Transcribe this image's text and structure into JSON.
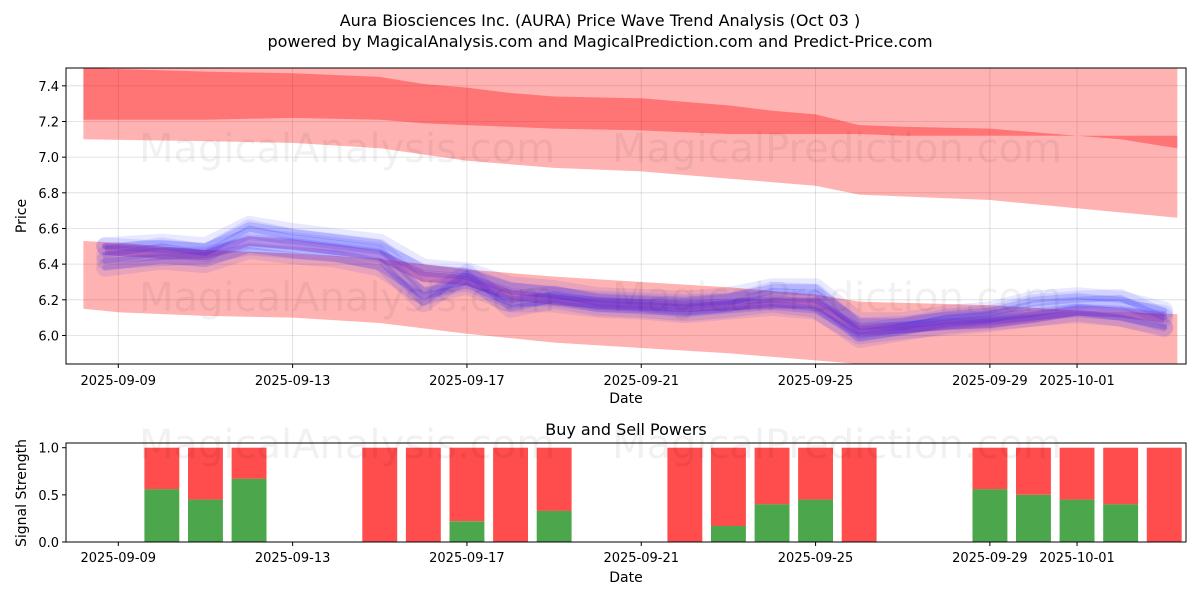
{
  "title_line1": "Aura Biosciences Inc. (AURA) Price Wave Trend Analysis (Oct 03 )",
  "title_line2": "powered by MagicalAnalysis.com and MagicalPrediction.com and Predict-Price.com",
  "watermarks": {
    "left": "MagicalAnalysis.com",
    "right": "MagicalPrediction.com"
  },
  "colors": {
    "band": "#ff0000",
    "wave": "#0000ff",
    "buy": "#008000",
    "sell": "#ff0000"
  },
  "chart_data": [
    {
      "type": "area",
      "title": "Aura Biosciences Inc. (AURA) Price Wave Trend Analysis (Oct 03 )",
      "xlabel": "Date",
      "ylabel": "Price",
      "xlim_days": [
        -1.2,
        24.5
      ],
      "ylim": [
        5.84,
        7.5
      ],
      "x_ticks": [
        {
          "day": 0,
          "label": "2025-09-09"
        },
        {
          "day": 4,
          "label": "2025-09-13"
        },
        {
          "day": 8,
          "label": "2025-09-17"
        },
        {
          "day": 12,
          "label": "2025-09-21"
        },
        {
          "day": 16,
          "label": "2025-09-25"
        },
        {
          "day": 20,
          "label": "2025-09-29"
        },
        {
          "day": 22,
          "label": "2025-10-01"
        }
      ],
      "y_ticks": [
        "6.0",
        "6.2",
        "6.4",
        "6.6",
        "6.8",
        "7.0",
        "7.2",
        "7.4"
      ],
      "y_tick_values": [
        6.0,
        6.2,
        6.4,
        6.6,
        6.8,
        7.0,
        7.2,
        7.4
      ],
      "grid": true,
      "upper_band_outer": {
        "x": [
          -0.8,
          2,
          4,
          6,
          8,
          10,
          12,
          14,
          16,
          17,
          20,
          24.3
        ],
        "top": [
          7.5,
          7.5,
          7.5,
          7.5,
          7.5,
          7.5,
          7.5,
          7.5,
          7.5,
          7.5,
          7.5,
          7.5
        ],
        "bottom": [
          7.1,
          7.09,
          7.08,
          7.05,
          6.98,
          6.94,
          6.92,
          6.88,
          6.84,
          6.79,
          6.76,
          6.66
        ]
      },
      "upper_band_inner": {
        "x": [
          -0.8,
          2,
          4,
          6,
          7,
          8,
          9,
          10,
          12,
          13,
          14,
          15,
          16,
          17,
          18,
          20,
          22,
          23,
          24.3
        ],
        "top": [
          7.5,
          7.48,
          7.47,
          7.45,
          7.41,
          7.39,
          7.36,
          7.34,
          7.33,
          7.31,
          7.29,
          7.26,
          7.24,
          7.18,
          7.17,
          7.16,
          7.12,
          7.1,
          7.05
        ],
        "bottom": [
          7.21,
          7.21,
          7.22,
          7.21,
          7.19,
          7.18,
          7.17,
          7.16,
          7.15,
          7.14,
          7.13,
          7.13,
          7.13,
          7.13,
          7.12,
          7.12,
          7.12,
          7.12,
          7.12
        ]
      },
      "lower_band": {
        "x": [
          -0.8,
          0,
          2,
          4,
          6,
          8,
          10,
          12,
          14,
          16,
          17,
          20,
          22,
          24.3
        ],
        "top": [
          6.53,
          6.52,
          6.48,
          6.46,
          6.43,
          6.37,
          6.33,
          6.3,
          6.27,
          6.23,
          6.19,
          6.17,
          6.14,
          6.12
        ],
        "bottom": [
          6.15,
          6.13,
          6.11,
          6.1,
          6.07,
          6.01,
          5.96,
          5.93,
          5.9,
          5.86,
          5.82,
          5.84,
          5.84,
          5.84
        ]
      },
      "wave_series": [
        {
          "name": "wave-1",
          "x": [
            -0.3,
            1,
            2,
            3,
            4,
            5,
            6,
            7,
            8,
            9,
            10,
            11,
            12,
            13,
            14,
            15,
            16,
            17,
            18,
            19,
            20,
            21,
            22,
            23,
            24
          ],
          "y": [
            6.5,
            6.48,
            6.47,
            6.55,
            6.53,
            6.5,
            6.47,
            6.35,
            6.33,
            6.25,
            6.22,
            6.2,
            6.19,
            6.18,
            6.19,
            6.2,
            6.2,
            6.05,
            6.06,
            6.08,
            6.09,
            6.12,
            6.16,
            6.15,
            6.12
          ]
        },
        {
          "name": "wave-2",
          "x": [
            -0.3,
            1,
            2,
            3,
            4,
            5,
            6,
            7,
            8,
            9,
            10,
            11,
            12,
            13,
            14,
            15,
            16,
            17,
            18,
            19,
            20,
            21,
            22,
            23,
            24
          ],
          "y": [
            6.45,
            6.5,
            6.46,
            6.6,
            6.55,
            6.52,
            6.49,
            6.25,
            6.3,
            6.2,
            6.23,
            6.18,
            6.17,
            6.16,
            6.18,
            6.25,
            6.24,
            6.02,
            6.05,
            6.1,
            6.12,
            6.18,
            6.2,
            6.21,
            6.1
          ]
        },
        {
          "name": "wave-3",
          "x": [
            -0.3,
            1,
            2,
            3,
            4,
            5,
            6,
            7,
            8,
            9,
            10,
            11,
            12,
            13,
            14,
            15,
            16,
            17,
            18,
            19,
            20,
            21,
            22,
            23,
            24
          ],
          "y": [
            6.42,
            6.44,
            6.45,
            6.5,
            6.48,
            6.46,
            6.42,
            6.18,
            6.35,
            6.15,
            6.2,
            6.16,
            6.15,
            6.13,
            6.15,
            6.18,
            6.15,
            5.98,
            6.02,
            6.06,
            6.08,
            6.1,
            6.13,
            6.1,
            6.05
          ]
        },
        {
          "name": "wave-4",
          "x": [
            -0.3,
            1,
            2,
            3,
            4,
            5,
            6,
            7,
            8,
            9,
            10,
            11,
            12,
            13,
            14,
            15,
            16,
            17,
            18,
            19,
            20,
            21,
            22,
            23,
            24
          ],
          "y": [
            6.5,
            6.52,
            6.5,
            6.62,
            6.58,
            6.55,
            6.52,
            6.38,
            6.36,
            6.28,
            6.26,
            6.22,
            6.21,
            6.2,
            6.22,
            6.27,
            6.27,
            6.08,
            6.08,
            6.12,
            6.14,
            6.2,
            6.22,
            6.2,
            6.14
          ]
        },
        {
          "name": "wave-5",
          "x": [
            -0.3,
            1,
            2,
            3,
            4,
            5,
            6,
            7,
            8,
            9,
            10,
            11,
            12,
            13,
            14,
            15,
            16,
            17,
            18,
            19,
            20,
            21,
            22,
            23,
            24
          ],
          "y": [
            6.38,
            6.42,
            6.4,
            6.48,
            6.45,
            6.43,
            6.38,
            6.22,
            6.28,
            6.18,
            6.18,
            6.15,
            6.14,
            6.12,
            6.14,
            6.16,
            6.14,
            6.0,
            6.03,
            6.05,
            6.07,
            6.1,
            6.12,
            6.1,
            6.04
          ]
        }
      ],
      "annotations": [
        "MagicalAnalysis.com",
        "MagicalPrediction.com"
      ]
    },
    {
      "type": "bar",
      "title": "Buy and Sell Powers",
      "xlabel": "Date",
      "ylabel": "Signal Strength",
      "xlim_days": [
        -1.2,
        24.5
      ],
      "ylim": [
        0,
        1.05
      ],
      "y_ticks": [
        "0.0",
        "0.5",
        "1.0"
      ],
      "y_tick_values": [
        0.0,
        0.5,
        1.0
      ],
      "x_ticks": [
        {
          "day": 0,
          "label": "2025-09-09"
        },
        {
          "day": 4,
          "label": "2025-09-13"
        },
        {
          "day": 8,
          "label": "2025-09-17"
        },
        {
          "day": 12,
          "label": "2025-09-21"
        },
        {
          "day": 16,
          "label": "2025-09-25"
        },
        {
          "day": 20,
          "label": "2025-09-29"
        },
        {
          "day": 22,
          "label": "2025-10-01"
        }
      ],
      "series": [
        {
          "name": "Buy",
          "color": "#008000"
        },
        {
          "name": "Sell",
          "color": "#ff0000"
        }
      ],
      "bars": [
        {
          "day": 1,
          "buy": 0.56
        },
        {
          "day": 2,
          "buy": 0.45
        },
        {
          "day": 3,
          "buy": 0.67
        },
        {
          "day": 6,
          "buy": 0.0
        },
        {
          "day": 7,
          "buy": 0.0
        },
        {
          "day": 8,
          "buy": 0.22
        },
        {
          "day": 9,
          "buy": 0.0
        },
        {
          "day": 10,
          "buy": 0.33
        },
        {
          "day": 13,
          "buy": 0.0
        },
        {
          "day": 14,
          "buy": 0.17
        },
        {
          "day": 15,
          "buy": 0.4
        },
        {
          "day": 16,
          "buy": 0.45
        },
        {
          "day": 17,
          "buy": 0.0
        },
        {
          "day": 20,
          "buy": 0.56
        },
        {
          "day": 21,
          "buy": 0.5
        },
        {
          "day": 22,
          "buy": 0.45
        },
        {
          "day": 23,
          "buy": 0.4
        },
        {
          "day": 24,
          "buy": 0.0
        }
      ],
      "total": 1.0
    }
  ]
}
